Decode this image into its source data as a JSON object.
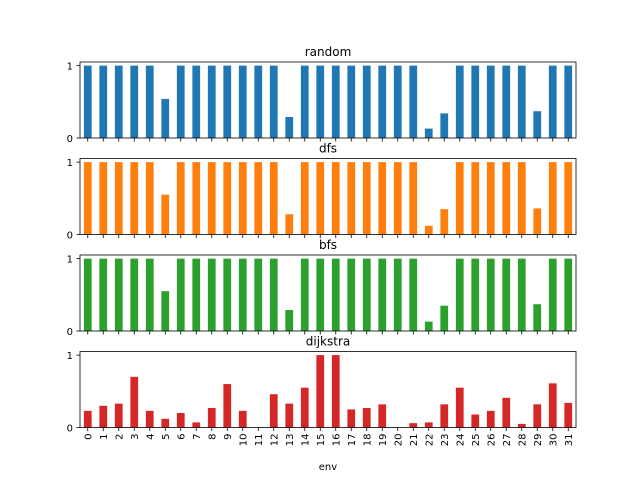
{
  "chart_data": [
    {
      "type": "bar",
      "title": "random",
      "color": "#1f77b4",
      "ylim": [
        0,
        1.05
      ],
      "yticks": [
        0,
        1
      ],
      "categories": [
        "0",
        "1",
        "2",
        "3",
        "4",
        "5",
        "6",
        "7",
        "8",
        "9",
        "10",
        "11",
        "12",
        "13",
        "14",
        "15",
        "16",
        "17",
        "18",
        "19",
        "20",
        "21",
        "22",
        "23",
        "24",
        "25",
        "26",
        "27",
        "28",
        "29",
        "30",
        "31"
      ],
      "values": [
        1,
        1,
        1,
        1,
        1,
        0.54,
        1,
        1,
        1,
        1,
        1,
        1,
        1,
        0.29,
        1,
        1,
        1,
        1,
        1,
        1,
        1,
        1,
        0.13,
        0.34,
        1,
        1,
        1,
        1,
        1,
        0.37,
        1,
        1
      ]
    },
    {
      "type": "bar",
      "title": "dfs",
      "color": "#ff7f0e",
      "ylim": [
        0,
        1.05
      ],
      "yticks": [
        0,
        1
      ],
      "categories": [
        "0",
        "1",
        "2",
        "3",
        "4",
        "5",
        "6",
        "7",
        "8",
        "9",
        "10",
        "11",
        "12",
        "13",
        "14",
        "15",
        "16",
        "17",
        "18",
        "19",
        "20",
        "21",
        "22",
        "23",
        "24",
        "25",
        "26",
        "27",
        "28",
        "29",
        "30",
        "31"
      ],
      "values": [
        1,
        1,
        1,
        1,
        1,
        0.55,
        1,
        1,
        1,
        1,
        1,
        1,
        1,
        0.28,
        1,
        1,
        1,
        1,
        1,
        1,
        1,
        1,
        0.12,
        0.35,
        1,
        1,
        1,
        1,
        1,
        0.36,
        1,
        1
      ]
    },
    {
      "type": "bar",
      "title": "bfs",
      "color": "#2ca02c",
      "ylim": [
        0,
        1.05
      ],
      "yticks": [
        0,
        1
      ],
      "categories": [
        "0",
        "1",
        "2",
        "3",
        "4",
        "5",
        "6",
        "7",
        "8",
        "9",
        "10",
        "11",
        "12",
        "13",
        "14",
        "15",
        "16",
        "17",
        "18",
        "19",
        "20",
        "21",
        "22",
        "23",
        "24",
        "25",
        "26",
        "27",
        "28",
        "29",
        "30",
        "31"
      ],
      "values": [
        1,
        1,
        1,
        1,
        1,
        0.55,
        1,
        1,
        1,
        1,
        1,
        1,
        1,
        0.29,
        1,
        1,
        1,
        1,
        1,
        1,
        1,
        1,
        0.13,
        0.35,
        1,
        1,
        1,
        1,
        1,
        0.37,
        1,
        1
      ]
    },
    {
      "type": "bar",
      "title": "dijkstra",
      "color": "#d62728",
      "ylim": [
        0,
        1.05
      ],
      "yticks": [
        0,
        1
      ],
      "xlabel": "env",
      "categories": [
        "0",
        "1",
        "2",
        "3",
        "4",
        "5",
        "6",
        "7",
        "8",
        "9",
        "10",
        "11",
        "12",
        "13",
        "14",
        "15",
        "16",
        "17",
        "18",
        "19",
        "20",
        "21",
        "22",
        "23",
        "24",
        "25",
        "26",
        "27",
        "28",
        "29",
        "30",
        "31"
      ],
      "values": [
        0.23,
        0.3,
        0.33,
        0.7,
        0.23,
        0.12,
        0.2,
        0.07,
        0.27,
        0.6,
        0.23,
        0,
        0.46,
        0.33,
        0.55,
        1,
        1,
        0.25,
        0.27,
        0.32,
        0,
        0.06,
        0.07,
        0.32,
        0.55,
        0.18,
        0.23,
        0.41,
        0.05,
        0.32,
        0.61,
        0.34
      ]
    }
  ]
}
